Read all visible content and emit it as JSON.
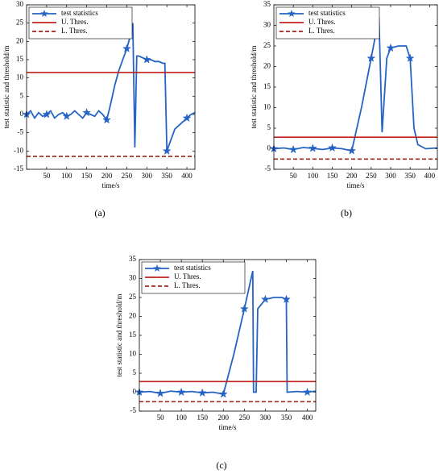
{
  "chart_data": [
    {
      "type": "line",
      "caption": "(a)",
      "x_label": "time/s",
      "y_label": "test statistic and threshold/m",
      "xlim": [
        0,
        420
      ],
      "xticks": [
        50,
        100,
        150,
        200,
        250,
        300,
        350,
        400
      ],
      "ylim": [
        -15,
        30
      ],
      "yticks": [
        -15,
        -10,
        -5,
        0,
        5,
        10,
        15,
        20,
        25,
        30
      ],
      "grid": false,
      "legend": "upper-left",
      "series": [
        {
          "name": "test statistics",
          "color": "#2563c4",
          "style": "solid-star",
          "x": [
            0,
            10,
            20,
            30,
            40,
            50,
            60,
            70,
            80,
            90,
            100,
            110,
            120,
            130,
            140,
            150,
            160,
            170,
            180,
            190,
            200,
            210,
            220,
            230,
            240,
            250,
            260,
            265,
            270,
            275,
            280,
            290,
            300,
            310,
            320,
            330,
            340,
            345,
            350,
            360,
            370,
            380,
            390,
            400,
            410,
            420
          ],
          "values": [
            0,
            1,
            -1,
            0.5,
            -0.5,
            0,
            1,
            -1,
            0,
            0.5,
            -0.5,
            0,
            1,
            0,
            -1,
            0.5,
            0,
            -0.5,
            1,
            0,
            -1.5,
            3,
            8,
            12,
            15,
            18,
            22,
            25,
            -9,
            16,
            16,
            15.5,
            15,
            15,
            14.5,
            14.5,
            14,
            14,
            -10,
            -7,
            -4,
            -3,
            -2,
            -1,
            0,
            0.5
          ]
        },
        {
          "name": "U. Thres.",
          "color": "#c0231e",
          "style": "solid",
          "x": [
            0,
            420
          ],
          "values": [
            11.5,
            11.5
          ]
        },
        {
          "name": "L. Thres.",
          "color": "#a3241c",
          "style": "dashed",
          "x": [
            0,
            420
          ],
          "values": [
            -11.5,
            -11.5
          ]
        }
      ]
    },
    {
      "type": "line",
      "caption": "(b)",
      "x_label": "time/s",
      "y_label": "test statistic and threshold/m",
      "xlim": [
        0,
        420
      ],
      "xticks": [
        50,
        100,
        150,
        200,
        250,
        300,
        350,
        400
      ],
      "ylim": [
        -5,
        35
      ],
      "yticks": [
        -5,
        0,
        5,
        10,
        15,
        20,
        25,
        30,
        35
      ],
      "grid": false,
      "legend": "upper-left",
      "series": [
        {
          "name": "test statistics",
          "color": "#2563c4",
          "style": "solid-star",
          "x": [
            0,
            25,
            50,
            75,
            100,
            125,
            150,
            175,
            200,
            225,
            250,
            270,
            278,
            290,
            300,
            320,
            340,
            350,
            360,
            370,
            390,
            420
          ],
          "values": [
            0,
            0.2,
            -0.2,
            0.3,
            0.1,
            -0.2,
            0.2,
            0,
            -0.5,
            10,
            22,
            32,
            4,
            22,
            24.5,
            25,
            25,
            22,
            5,
            1,
            0,
            0.2
          ]
        },
        {
          "name": "U. Thres.",
          "color": "#c0231e",
          "style": "solid",
          "x": [
            0,
            420
          ],
          "values": [
            2.8,
            2.8
          ]
        },
        {
          "name": "L. Thres.",
          "color": "#a3241c",
          "style": "dashed",
          "x": [
            0,
            420
          ],
          "values": [
            -2.5,
            -2.5
          ]
        }
      ]
    },
    {
      "type": "line",
      "caption": "(c)",
      "x_label": "time/s",
      "y_label": "test statistic and threshold/m",
      "xlim": [
        0,
        420
      ],
      "xticks": [
        50,
        100,
        150,
        200,
        250,
        300,
        350,
        400
      ],
      "ylim": [
        -5,
        35
      ],
      "yticks": [
        -5,
        0,
        5,
        10,
        15,
        20,
        25,
        30,
        35
      ],
      "grid": false,
      "legend": "upper-left",
      "series": [
        {
          "name": "test statistics",
          "color": "#2563c4",
          "style": "solid-star",
          "x": [
            0,
            25,
            50,
            75,
            100,
            125,
            150,
            175,
            200,
            225,
            250,
            270,
            272,
            278,
            282,
            300,
            320,
            340,
            350,
            352,
            375,
            400,
            420
          ],
          "values": [
            0,
            0.2,
            -0.3,
            0.3,
            0,
            0.2,
            -0.2,
            0,
            -0.5,
            10,
            22,
            32,
            0,
            0,
            22,
            24.5,
            25,
            25,
            24.5,
            0,
            0.2,
            0,
            0.3
          ]
        },
        {
          "name": "U. Thres.",
          "color": "#c0231e",
          "style": "solid",
          "x": [
            0,
            420
          ],
          "values": [
            2.8,
            2.8
          ]
        },
        {
          "name": "L. Thres.",
          "color": "#a3241c",
          "style": "dashed",
          "x": [
            0,
            420
          ],
          "values": [
            -2.5,
            -2.5
          ]
        }
      ]
    }
  ]
}
